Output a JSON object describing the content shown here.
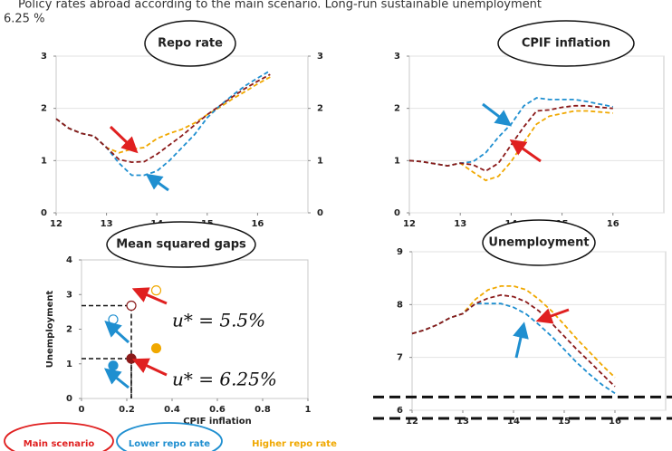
{
  "header": {
    "lines": [
      "Policy rates abroad according to the main scenario. Long-run sustainable unemployment",
      "6.25 %"
    ]
  },
  "legend": {
    "entries": [
      {
        "name": "Main scenario",
        "color": "#e02020"
      },
      {
        "name": "Lower repo rate",
        "color": "#1f8fd0"
      },
      {
        "name": "Higher repo rate",
        "color": "#f0a800"
      }
    ]
  },
  "chart_data": [
    {
      "type": "line",
      "title": "Repo rate",
      "x": [
        12,
        12.25,
        12.5,
        12.75,
        13,
        13.25,
        13.5,
        13.75,
        14,
        14.25,
        14.5,
        14.75,
        15,
        15.25,
        15.5,
        15.75,
        16,
        16.25
      ],
      "xlim": [
        12,
        17
      ],
      "xticks": [
        12,
        13,
        14,
        15,
        16
      ],
      "ylim": [
        0,
        3
      ],
      "yticks": [
        0,
        1,
        2,
        3
      ],
      "y2lim": [
        0,
        3
      ],
      "y2ticks": [
        0,
        1,
        2,
        3
      ],
      "grid": true,
      "series": [
        {
          "color": "#8b1a1a",
          "values": [
            1.8,
            1.62,
            1.52,
            1.47,
            1.25,
            1.02,
            0.97,
            0.98,
            1.12,
            1.3,
            1.48,
            1.68,
            1.88,
            2.05,
            2.22,
            2.38,
            2.52,
            2.65
          ]
        },
        {
          "color": "#1f8fd0",
          "values": [
            1.8,
            1.62,
            1.52,
            1.47,
            1.25,
            0.95,
            0.72,
            0.72,
            0.8,
            1.0,
            1.25,
            1.5,
            1.82,
            2.05,
            2.25,
            2.43,
            2.58,
            2.72
          ]
        },
        {
          "color": "#f0a800",
          "values": [
            1.8,
            1.62,
            1.52,
            1.47,
            1.25,
            1.15,
            1.22,
            1.25,
            1.42,
            1.52,
            1.6,
            1.72,
            1.88,
            2.02,
            2.18,
            2.32,
            2.47,
            2.6
          ]
        }
      ]
    },
    {
      "type": "line",
      "title": "CPIF inflation",
      "x": [
        12,
        12.25,
        12.5,
        12.75,
        13,
        13.25,
        13.5,
        13.75,
        14,
        14.25,
        14.5,
        14.75,
        15,
        15.25,
        15.5,
        15.75,
        16
      ],
      "xlim": [
        12,
        17
      ],
      "xticks": [
        12,
        13,
        14,
        15,
        16
      ],
      "ylim": [
        0,
        3
      ],
      "yticks": [
        0,
        1,
        2,
        3
      ],
      "grid": true,
      "series": [
        {
          "color": "#8b1a1a",
          "values": [
            1.0,
            0.98,
            0.94,
            0.9,
            0.95,
            0.92,
            0.8,
            0.95,
            1.3,
            1.65,
            1.95,
            1.97,
            2.02,
            2.05,
            2.05,
            2.02,
            2.0
          ]
        },
        {
          "color": "#1f8fd0",
          "values": [
            1.0,
            0.98,
            0.94,
            0.9,
            0.95,
            0.98,
            1.15,
            1.45,
            1.7,
            2.05,
            2.2,
            2.17,
            2.17,
            2.17,
            2.13,
            2.08,
            2.03
          ]
        },
        {
          "color": "#f0a800",
          "values": [
            1.0,
            0.98,
            0.94,
            0.9,
            0.95,
            0.78,
            0.62,
            0.7,
            0.98,
            1.35,
            1.7,
            1.85,
            1.9,
            1.95,
            1.95,
            1.93,
            1.91
          ]
        }
      ]
    },
    {
      "type": "scatter",
      "title": "Mean squared gaps",
      "x_label": "CPIF inflation",
      "y_label": "Unemployment",
      "xlim": [
        0,
        1
      ],
      "xticks": [
        0,
        0.2,
        0.4,
        0.6,
        0.8,
        1
      ],
      "ylim": [
        0,
        4
      ],
      "yticks": [
        0,
        1,
        2,
        3,
        4
      ],
      "grid": false,
      "annotations": [
        "u* = 5.5%",
        "u* = 6.25%"
      ],
      "series": [
        {
          "color": "#8b1a1a",
          "marker": "hollow",
          "guide": true,
          "x": [
            0.22
          ],
          "values": [
            2.68
          ]
        },
        {
          "color": "#1f8fd0",
          "marker": "hollow",
          "x": [
            0.14
          ],
          "values": [
            2.28
          ]
        },
        {
          "color": "#f0a800",
          "marker": "hollow",
          "x": [
            0.33
          ],
          "values": [
            3.12
          ]
        },
        {
          "color": "#8b1a1a",
          "marker": "filled",
          "guide": true,
          "x": [
            0.22
          ],
          "values": [
            1.15
          ]
        },
        {
          "color": "#1f8fd0",
          "marker": "filled",
          "x": [
            0.14
          ],
          "values": [
            0.95
          ]
        },
        {
          "color": "#f0a800",
          "marker": "filled",
          "x": [
            0.33
          ],
          "values": [
            1.45
          ]
        }
      ]
    },
    {
      "type": "line",
      "title": "Unemployment",
      "x": [
        12,
        12.25,
        12.5,
        12.75,
        13,
        13.25,
        13.5,
        13.75,
        14,
        14.25,
        14.5,
        14.75,
        15,
        15.25,
        15.5,
        15.75,
        16
      ],
      "xlim": [
        12,
        17
      ],
      "xticks": [
        12,
        13,
        14,
        15,
        16
      ],
      "ylim": [
        6,
        9
      ],
      "yticks": [
        6,
        7,
        8,
        9
      ],
      "grid": true,
      "hlines": [
        6.25
      ],
      "series": [
        {
          "color": "#8b1a1a",
          "values": [
            7.45,
            7.52,
            7.62,
            7.75,
            7.83,
            8.02,
            8.12,
            8.18,
            8.15,
            8.05,
            7.88,
            7.65,
            7.4,
            7.15,
            6.92,
            6.68,
            6.45
          ]
        },
        {
          "color": "#1f8fd0",
          "values": [
            7.45,
            7.52,
            7.62,
            7.75,
            7.83,
            8.02,
            8.02,
            8.02,
            7.95,
            7.82,
            7.62,
            7.4,
            7.15,
            6.9,
            6.68,
            6.48,
            6.32
          ]
        },
        {
          "color": "#f0a800",
          "values": [
            7.45,
            7.52,
            7.62,
            7.75,
            7.83,
            8.1,
            8.28,
            8.35,
            8.35,
            8.28,
            8.1,
            7.88,
            7.62,
            7.35,
            7.1,
            6.85,
            6.62
          ]
        }
      ]
    }
  ]
}
